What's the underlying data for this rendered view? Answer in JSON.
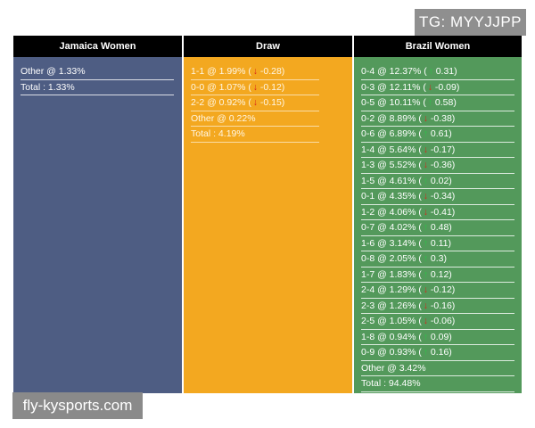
{
  "watermark_top": "TG: MYYJJPP",
  "watermark_bottom": "fly-kysports.com",
  "columns": {
    "home": {
      "title": "Jamaica Women",
      "rows": [
        {
          "text": "Other @ 1.33%"
        },
        {
          "text": "Total : 1.33%"
        }
      ]
    },
    "draw": {
      "title": "Draw",
      "rows": [
        {
          "text": "1-1 @ 1.99% (",
          "arrow": "down",
          "change": "-0.28)"
        },
        {
          "text": "0-0 @ 1.07% (",
          "arrow": "down",
          "change": "-0.12)"
        },
        {
          "text": "2-2 @ 0.92% (",
          "arrow": "down",
          "change": "-0.15)"
        },
        {
          "text": "Other @ 0.22%"
        },
        {
          "text": "Total : 4.19%"
        }
      ]
    },
    "away": {
      "title": "Brazil Women",
      "rows": [
        {
          "text": "0-4 @ 12.37% (",
          "arrow": "up",
          "change": "0.31)"
        },
        {
          "text": "0-3 @ 12.11% (",
          "arrow": "down",
          "change": "-0.09)"
        },
        {
          "text": "0-5 @ 10.11% (",
          "arrow": "up",
          "change": "0.58)"
        },
        {
          "text": "0-2 @ 8.89% (",
          "arrow": "down",
          "change": "-0.38)"
        },
        {
          "text": "0-6 @ 6.89% (",
          "arrow": "up",
          "change": "0.61)"
        },
        {
          "text": "1-4 @ 5.64% (",
          "arrow": "down",
          "change": "-0.17)"
        },
        {
          "text": "1-3 @ 5.52% (",
          "arrow": "down",
          "change": "-0.36)"
        },
        {
          "text": "1-5 @ 4.61% (",
          "arrow": "up",
          "change": "0.02)"
        },
        {
          "text": "0-1 @ 4.35% (",
          "arrow": "down",
          "change": "-0.34)"
        },
        {
          "text": "1-2 @ 4.06% (",
          "arrow": "down",
          "change": "-0.41)"
        },
        {
          "text": "0-7 @ 4.02% (",
          "arrow": "up",
          "change": "0.48)"
        },
        {
          "text": "1-6 @ 3.14% (",
          "arrow": "up",
          "change": "0.11)"
        },
        {
          "text": "0-8 @ 2.05% (",
          "arrow": "up",
          "change": "0.3)"
        },
        {
          "text": "1-7 @ 1.83% (",
          "arrow": "up",
          "change": "0.12)"
        },
        {
          "text": "2-4 @ 1.29% (",
          "arrow": "down",
          "change": "-0.12)"
        },
        {
          "text": "2-3 @ 1.26% (",
          "arrow": "down",
          "change": "-0.16)"
        },
        {
          "text": "2-5 @ 1.05% (",
          "arrow": "down",
          "change": "-0.06)"
        },
        {
          "text": "1-8 @ 0.94% (",
          "arrow": "up",
          "change": "0.09)"
        },
        {
          "text": "0-9 @ 0.93% (",
          "arrow": "up",
          "change": "0.16)"
        },
        {
          "text": "Other @ 3.42%"
        },
        {
          "text": "Total : 94.48%"
        }
      ]
    }
  },
  "colors": {
    "home_bg": "#4e5d83",
    "draw_bg": "#f3a820",
    "away_bg": "#53995b",
    "header_bg": "#000000",
    "arrow_down": "#d9261c",
    "arrow_up": "#2fc24a"
  },
  "icons": {
    "down": "arrow-down-icon",
    "up": "arrow-up-icon"
  }
}
